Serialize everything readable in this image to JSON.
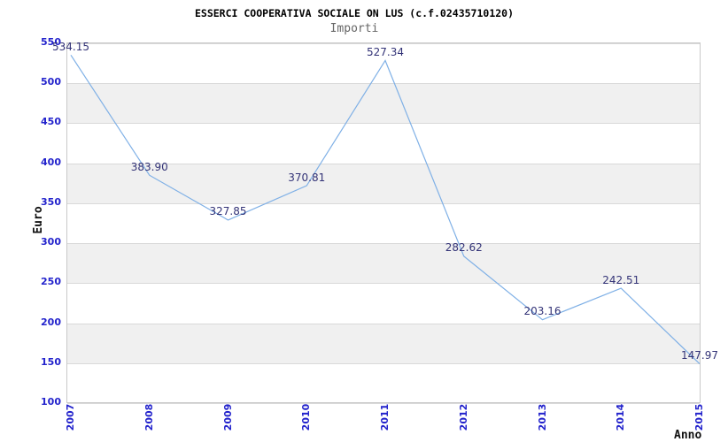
{
  "chart_data": {
    "type": "line",
    "title": "ESSERCI COOPERATIVA SOCIALE ON LUS (c.f.02435710120)",
    "subtitle": "Importi",
    "xlabel": "Anno",
    "ylabel": "Euro",
    "categories": [
      "2007",
      "2008",
      "2009",
      "2010",
      "2011",
      "2012",
      "2013",
      "2014",
      "2015"
    ],
    "series": [
      {
        "name": "Importi",
        "values": [
          534.15,
          383.9,
          327.85,
          370.81,
          527.34,
          282.62,
          203.16,
          242.51,
          147.97
        ],
        "point_labels": [
          "534.15",
          "383.90",
          "327.85",
          "370.81",
          "527.34",
          "282.62",
          "203.16",
          "242.51",
          "147.97"
        ]
      }
    ],
    "y_ticks": [
      550,
      500,
      450,
      400,
      350,
      300,
      250,
      200,
      150,
      100
    ],
    "ylim": [
      100,
      550
    ],
    "grid": "horizontal",
    "bands": "alternating-gray",
    "legend": "none",
    "colors": {
      "line": "#7fb0e6",
      "tick_label": "#2323cc",
      "point_label": "#333377",
      "grid_line": "#d9d9d9",
      "band_fill": "#f0f0f0",
      "plot_border": "#c9c9c9",
      "title": "#000000",
      "subtitle": "#666666",
      "axis_title": "#111111",
      "background": "#ffffff"
    }
  }
}
